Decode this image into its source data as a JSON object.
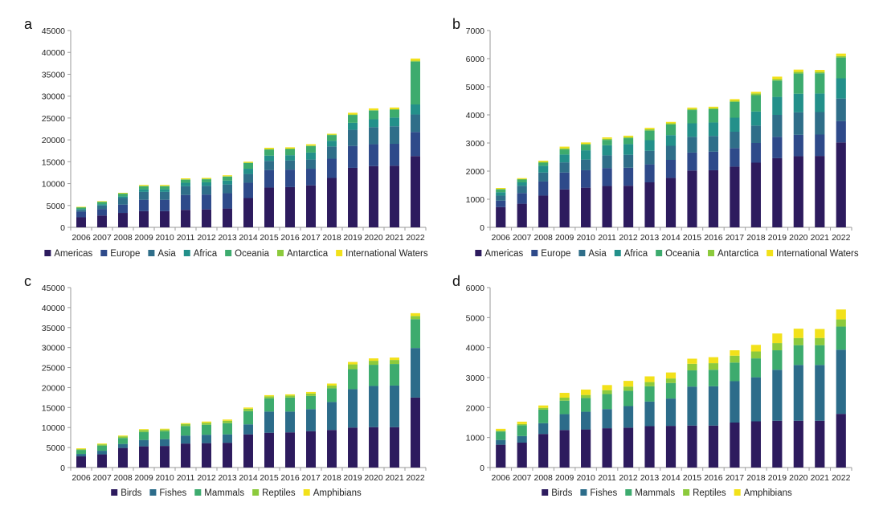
{
  "chart_data": [
    {
      "type": "bar",
      "stacked": true,
      "panel_label": "a",
      "categories": [
        "2006",
        "2007",
        "2008",
        "2009",
        "2010",
        "2011",
        "2012",
        "2013",
        "2014",
        "2015",
        "2016",
        "2017",
        "2018",
        "2019",
        "2020",
        "2021",
        "2022"
      ],
      "ylim": [
        0,
        45000
      ],
      "yticks": [
        0,
        5000,
        10000,
        15000,
        20000,
        25000,
        30000,
        35000,
        40000,
        45000
      ],
      "series": [
        {
          "name": "Americas",
          "color": "#2d1b5e",
          "values": [
            2300,
            2700,
            3300,
            3700,
            3700,
            4000,
            4100,
            4300,
            6700,
            9100,
            9200,
            9600,
            11300,
            13600,
            14000,
            14100,
            16300
          ]
        },
        {
          "name": "Europe",
          "color": "#2e4a8a",
          "values": [
            1300,
            1500,
            1900,
            2600,
            2600,
            3400,
            3400,
            3500,
            3500,
            4000,
            4000,
            3800,
            4400,
            5000,
            5000,
            5000,
            5500
          ]
        },
        {
          "name": "Asia",
          "color": "#2f6e89",
          "values": [
            400,
            800,
            1500,
            1800,
            1800,
            2000,
            2000,
            2000,
            2000,
            2100,
            2100,
            2100,
            2800,
            3700,
            3900,
            4000,
            4000
          ]
        },
        {
          "name": "Africa",
          "color": "#23908a",
          "values": [
            200,
            300,
            400,
            600,
            600,
            800,
            800,
            900,
            1200,
            1200,
            1200,
            1600,
            1300,
            1600,
            1800,
            2000,
            2300
          ]
        },
        {
          "name": "Oceania",
          "color": "#3dab6e",
          "values": [
            300,
            500,
            600,
            700,
            700,
            700,
            700,
            900,
            1300,
            1400,
            1400,
            1500,
            1300,
            1800,
            2000,
            1800,
            9800
          ]
        },
        {
          "name": "Antarctica",
          "color": "#8cca3c",
          "values": [
            100,
            100,
            100,
            100,
            100,
            100,
            100,
            100,
            100,
            100,
            100,
            100,
            100,
            100,
            100,
            100,
            200
          ]
        },
        {
          "name": "International Waters",
          "color": "#f2e11a",
          "values": [
            100,
            100,
            100,
            200,
            200,
            200,
            200,
            200,
            200,
            300,
            300,
            300,
            200,
            400,
            400,
            400,
            500
          ]
        }
      ]
    },
    {
      "type": "bar",
      "stacked": true,
      "panel_label": "b",
      "categories": [
        "2006",
        "2007",
        "2008",
        "2009",
        "2010",
        "2011",
        "2012",
        "2013",
        "2014",
        "2015",
        "2016",
        "2017",
        "2018",
        "2019",
        "2020",
        "2021",
        "2022"
      ],
      "ylim": [
        0,
        7000
      ],
      "yticks": [
        0,
        1000,
        2000,
        3000,
        4000,
        5000,
        6000,
        7000
      ],
      "series": [
        {
          "name": "Americas",
          "color": "#2d1b5e",
          "values": [
            720,
            840,
            1130,
            1350,
            1410,
            1470,
            1480,
            1600,
            1760,
            2020,
            2030,
            2160,
            2300,
            2460,
            2530,
            2540,
            3020
          ]
        },
        {
          "name": "Europe",
          "color": "#2e4a8a",
          "values": [
            230,
            380,
            500,
            600,
            620,
            640,
            640,
            640,
            640,
            640,
            660,
            660,
            700,
            760,
            760,
            760,
            760
          ]
        },
        {
          "name": "Asia",
          "color": "#2f6e89",
          "values": [
            180,
            260,
            320,
            360,
            380,
            450,
            460,
            480,
            500,
            560,
            560,
            580,
            620,
            780,
            800,
            800,
            800
          ]
        },
        {
          "name": "Africa",
          "color": "#23908a",
          "values": [
            120,
            120,
            240,
            280,
            330,
            360,
            380,
            380,
            380,
            480,
            480,
            500,
            500,
            640,
            660,
            660,
            720
          ]
        },
        {
          "name": "Oceania",
          "color": "#3dab6e",
          "values": [
            100,
            100,
            110,
            180,
            200,
            190,
            210,
            340,
            380,
            470,
            470,
            560,
            580,
            580,
            720,
            720,
            740
          ]
        },
        {
          "name": "Antarctica",
          "color": "#8cca3c",
          "values": [
            20,
            20,
            30,
            40,
            30,
            40,
            40,
            50,
            40,
            40,
            40,
            40,
            60,
            50,
            60,
            50,
            50
          ]
        },
        {
          "name": "International Waters",
          "color": "#f2e11a",
          "values": [
            30,
            30,
            40,
            60,
            50,
            50,
            50,
            50,
            50,
            50,
            50,
            60,
            60,
            90,
            80,
            70,
            90
          ]
        }
      ]
    },
    {
      "type": "bar",
      "stacked": true,
      "panel_label": "c",
      "categories": [
        "2006",
        "2007",
        "2008",
        "2009",
        "2010",
        "2011",
        "2012",
        "2013",
        "2014",
        "2015",
        "2016",
        "2017",
        "2018",
        "2019",
        "2020",
        "2021",
        "2022"
      ],
      "ylim": [
        0,
        45000
      ],
      "yticks": [
        0,
        5000,
        10000,
        15000,
        20000,
        25000,
        30000,
        35000,
        40000,
        45000
      ],
      "series": [
        {
          "name": "Birds",
          "color": "#2d1b5e",
          "values": [
            2800,
            3300,
            4900,
            5300,
            5400,
            6000,
            6100,
            6200,
            8300,
            8700,
            8800,
            9100,
            9400,
            10000,
            10100,
            10100,
            17500
          ]
        },
        {
          "name": "Fishes",
          "color": "#2c6c8a",
          "values": [
            600,
            900,
            1000,
            1600,
            1700,
            2000,
            2100,
            2100,
            2500,
            5300,
            5200,
            5500,
            7000,
            9600,
            10300,
            10400,
            12400
          ]
        },
        {
          "name": "Mammals",
          "color": "#3dab6e",
          "values": [
            1000,
            1300,
            1500,
            2000,
            2000,
            2400,
            2500,
            2800,
            3300,
            3300,
            3500,
            3300,
            3400,
            5000,
            5300,
            5400,
            7200
          ]
        },
        {
          "name": "Reptiles",
          "color": "#8cca3c",
          "values": [
            200,
            300,
            400,
            500,
            400,
            500,
            500,
            600,
            600,
            500,
            500,
            600,
            700,
            1200,
            1000,
            1000,
            800
          ]
        },
        {
          "name": "Amphibians",
          "color": "#f2e11a",
          "values": [
            200,
            200,
            200,
            200,
            200,
            200,
            300,
            300,
            300,
            300,
            300,
            400,
            500,
            600,
            600,
            600,
            700
          ]
        }
      ]
    },
    {
      "type": "bar",
      "stacked": true,
      "panel_label": "d",
      "categories": [
        "2006",
        "2007",
        "2008",
        "2009",
        "2010",
        "2011",
        "2012",
        "2013",
        "2014",
        "2015",
        "2016",
        "2017",
        "2018",
        "2019",
        "2020",
        "2021",
        "2022"
      ],
      "ylim": [
        0,
        6000
      ],
      "yticks": [
        0,
        1000,
        2000,
        3000,
        4000,
        5000,
        6000
      ],
      "series": [
        {
          "name": "Birds",
          "color": "#2d1b5e",
          "values": [
            760,
            830,
            1120,
            1250,
            1270,
            1310,
            1330,
            1380,
            1390,
            1400,
            1400,
            1500,
            1540,
            1560,
            1560,
            1560,
            1790
          ]
        },
        {
          "name": "Fishes",
          "color": "#2c6c8a",
          "values": [
            160,
            220,
            360,
            530,
            590,
            640,
            720,
            820,
            910,
            1300,
            1310,
            1380,
            1470,
            1700,
            1860,
            1860,
            2140
          ]
        },
        {
          "name": "Mammals",
          "color": "#3dab6e",
          "values": [
            280,
            360,
            450,
            450,
            460,
            500,
            510,
            510,
            520,
            540,
            550,
            620,
            630,
            650,
            660,
            660,
            770
          ]
        },
        {
          "name": "Reptiles",
          "color": "#8cca3c",
          "values": [
            30,
            40,
            60,
            100,
            100,
            130,
            140,
            140,
            150,
            220,
            220,
            230,
            230,
            240,
            240,
            240,
            240
          ]
        },
        {
          "name": "Amphibians",
          "color": "#f2e11a",
          "values": [
            60,
            80,
            80,
            160,
            180,
            170,
            190,
            190,
            200,
            170,
            200,
            180,
            220,
            320,
            310,
            300,
            330
          ]
        }
      ]
    }
  ]
}
